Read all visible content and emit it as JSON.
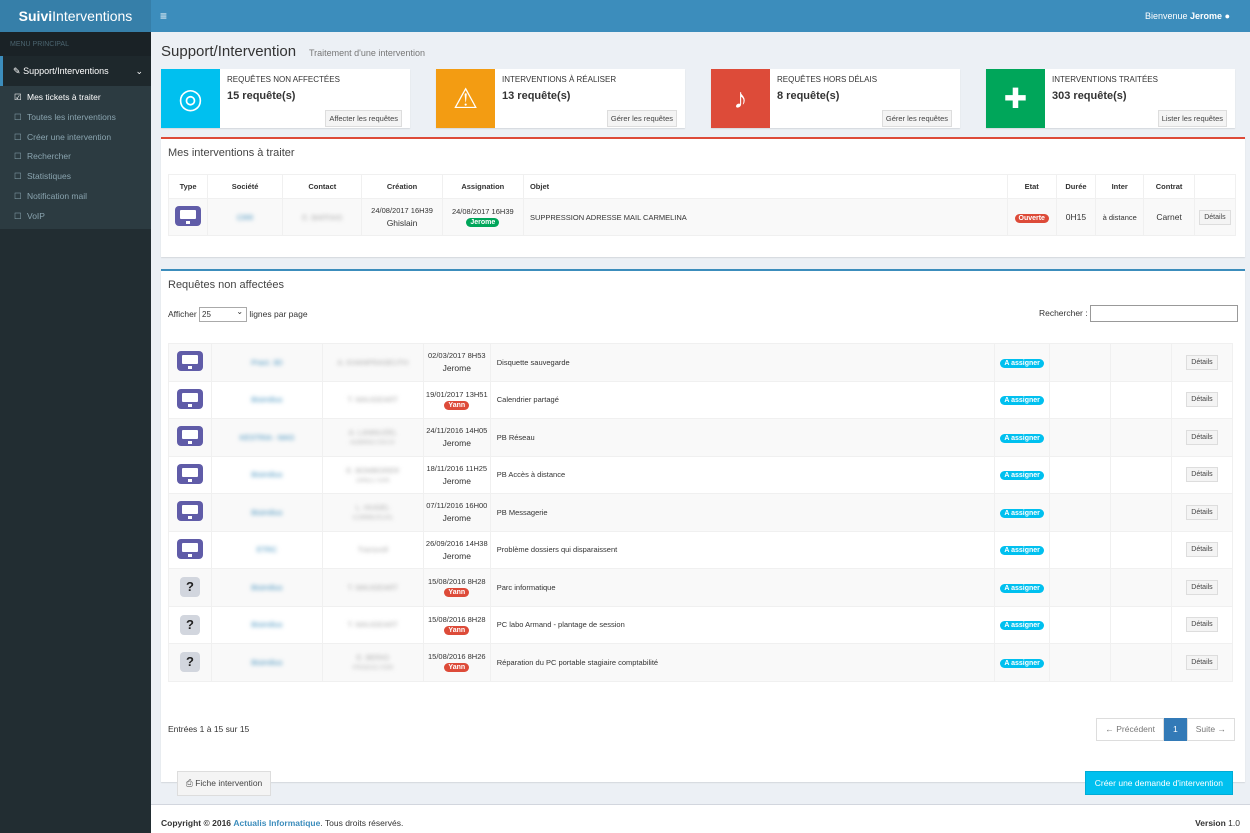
{
  "app": {
    "logo_bold": "Suivi",
    "logo_rest": "Interventions",
    "welcome_prefix": "Bienvenue",
    "user": "Jerome"
  },
  "sidebar": {
    "header": "MENU PRINCIPAL",
    "main_item": "Support/Interventions",
    "items": [
      {
        "label": "Mes tickets à traiter",
        "checked": true
      },
      {
        "label": "Toutes les interventions",
        "checked": false
      },
      {
        "label": "Créer une intervention",
        "checked": false
      },
      {
        "label": "Rechercher",
        "checked": false
      },
      {
        "label": "Statistiques",
        "checked": false
      },
      {
        "label": "Notification mail",
        "checked": false
      },
      {
        "label": "VoIP",
        "checked": false
      }
    ]
  },
  "page": {
    "title": "Support/Intervention",
    "subtitle": "Traitement d'une intervention"
  },
  "infoboxes": [
    {
      "label": "REQUÊTES NON AFFECTÉES",
      "count": "15 requête(s)",
      "button": "Affecter les requêtes",
      "color": "#00c0ef",
      "icon": "lifebuoy-icon"
    },
    {
      "label": "INTERVENTIONS À RÉALISER",
      "count": "13 requête(s)",
      "button": "Gérer les requêtes",
      "color": "#f39c12",
      "icon": "warning-icon"
    },
    {
      "label": "REQUÊTES HORS DÉLAIS",
      "count": "8 requête(s)",
      "button": "Gérer les requêtes",
      "color": "#dd4b39",
      "icon": "bell-icon"
    },
    {
      "label": "INTERVENTIONS TRAITÉES",
      "count": "303 requête(s)",
      "button": "Lister les requêtes",
      "color": "#00a65a",
      "icon": "medkit-icon"
    }
  ],
  "my_interventions": {
    "title": "Mes interventions à traiter",
    "headers": [
      "Type",
      "Société",
      "Contact",
      "Création",
      "Assignation",
      "Objet",
      "Etat",
      "Durée",
      "Inter",
      "Contrat",
      ""
    ],
    "row": {
      "societe": "CRR",
      "contact": "E. BAFFAIS",
      "creation_date": "24/08/2017 16H39",
      "creation_user": "Ghislain",
      "assign_date": "24/08/2017 16H39",
      "assign_user": "Jerome",
      "objet": "SUPPRESSION ADRESSE MAIL CARMELINA",
      "etat": "Ouverte",
      "duree": "0H15",
      "inter": "à distance",
      "contrat": "Carnet",
      "details": "Détails"
    }
  },
  "unassigned": {
    "title": "Requêtes non affectées",
    "show_label": "Afficher",
    "show_value": "25",
    "per_page": "lignes par page",
    "search_label": "Rechercher :",
    "status_label": "A assigner",
    "details": "Détails",
    "rows": [
      {
        "type": "monitor",
        "societe": "Pract. 3D",
        "contact": "A. KHANPRASEUTH",
        "role": "",
        "date": "02/03/2017 8H53",
        "user": "Jerome",
        "user_badge": false,
        "objet": "Disquette sauvegarde"
      },
      {
        "type": "monitor",
        "societe": "Bisimilius",
        "contact": "T. MAUGEART",
        "role": "",
        "date": "19/01/2017 13H51",
        "user": "Yann",
        "user_badge": true,
        "objet": "Calendrier partagé"
      },
      {
        "type": "monitor",
        "societe": "KESTRIA - MAS",
        "contact": "A. LANNUZEL",
        "role": "ADMINISTRATIF",
        "date": "24/11/2016 14H05",
        "user": "Jerome",
        "user_badge": false,
        "objet": "PB Réseau"
      },
      {
        "type": "monitor",
        "societe": "Bisimilius",
        "contact": "E. BOMBORER",
        "role": "DIRECTION",
        "date": "18/11/2016 11H25",
        "user": "Jerome",
        "user_badge": false,
        "objet": "PB Accès à distance"
      },
      {
        "type": "monitor",
        "societe": "Bisimilius",
        "contact": "L. HUGEL",
        "role": "COMMERCIAL",
        "date": "07/11/2016 16H00",
        "user": "Jerome",
        "user_badge": false,
        "objet": "PB Messagerie"
      },
      {
        "type": "monitor",
        "societe": "ETRC",
        "contact": "Transvoll",
        "role": "",
        "date": "26/09/2016 14H38",
        "user": "Jerome",
        "user_badge": false,
        "objet": "Problème dossiers qui disparaissent"
      },
      {
        "type": "unknown",
        "societe": "Bisimilius",
        "contact": "T. MAUGEART",
        "role": "",
        "date": "15/08/2016 8H28",
        "user": "Yann",
        "user_badge": true,
        "objet": "Parc informatique"
      },
      {
        "type": "unknown",
        "societe": "Bisimilius",
        "contact": "T. MAUGEART",
        "role": "",
        "date": "15/08/2016 8H28",
        "user": "Yann",
        "user_badge": true,
        "objet": "PC labo Armand - plantage de session"
      },
      {
        "type": "unknown",
        "societe": "Bisimilius",
        "contact": "E. BERIO",
        "role": "PRODUCTION",
        "date": "15/08/2016 8H26",
        "user": "Yann",
        "user_badge": true,
        "objet": "Réparation du PC portable stagiaire comptabilité"
      }
    ],
    "entries": "Entrées 1 à 15 sur 15",
    "pager": {
      "prev": "← Précédent",
      "page": "1",
      "next": "Suite →"
    },
    "print_button": "Fiche intervention",
    "create_button": "Créer une demande d'intervention"
  },
  "footer": {
    "prefix": "Copyright © 2016",
    "company": "Actualis Informatique",
    "suffix": ". Tous droits réservés.",
    "version_label": "Version",
    "version": "1.0"
  }
}
